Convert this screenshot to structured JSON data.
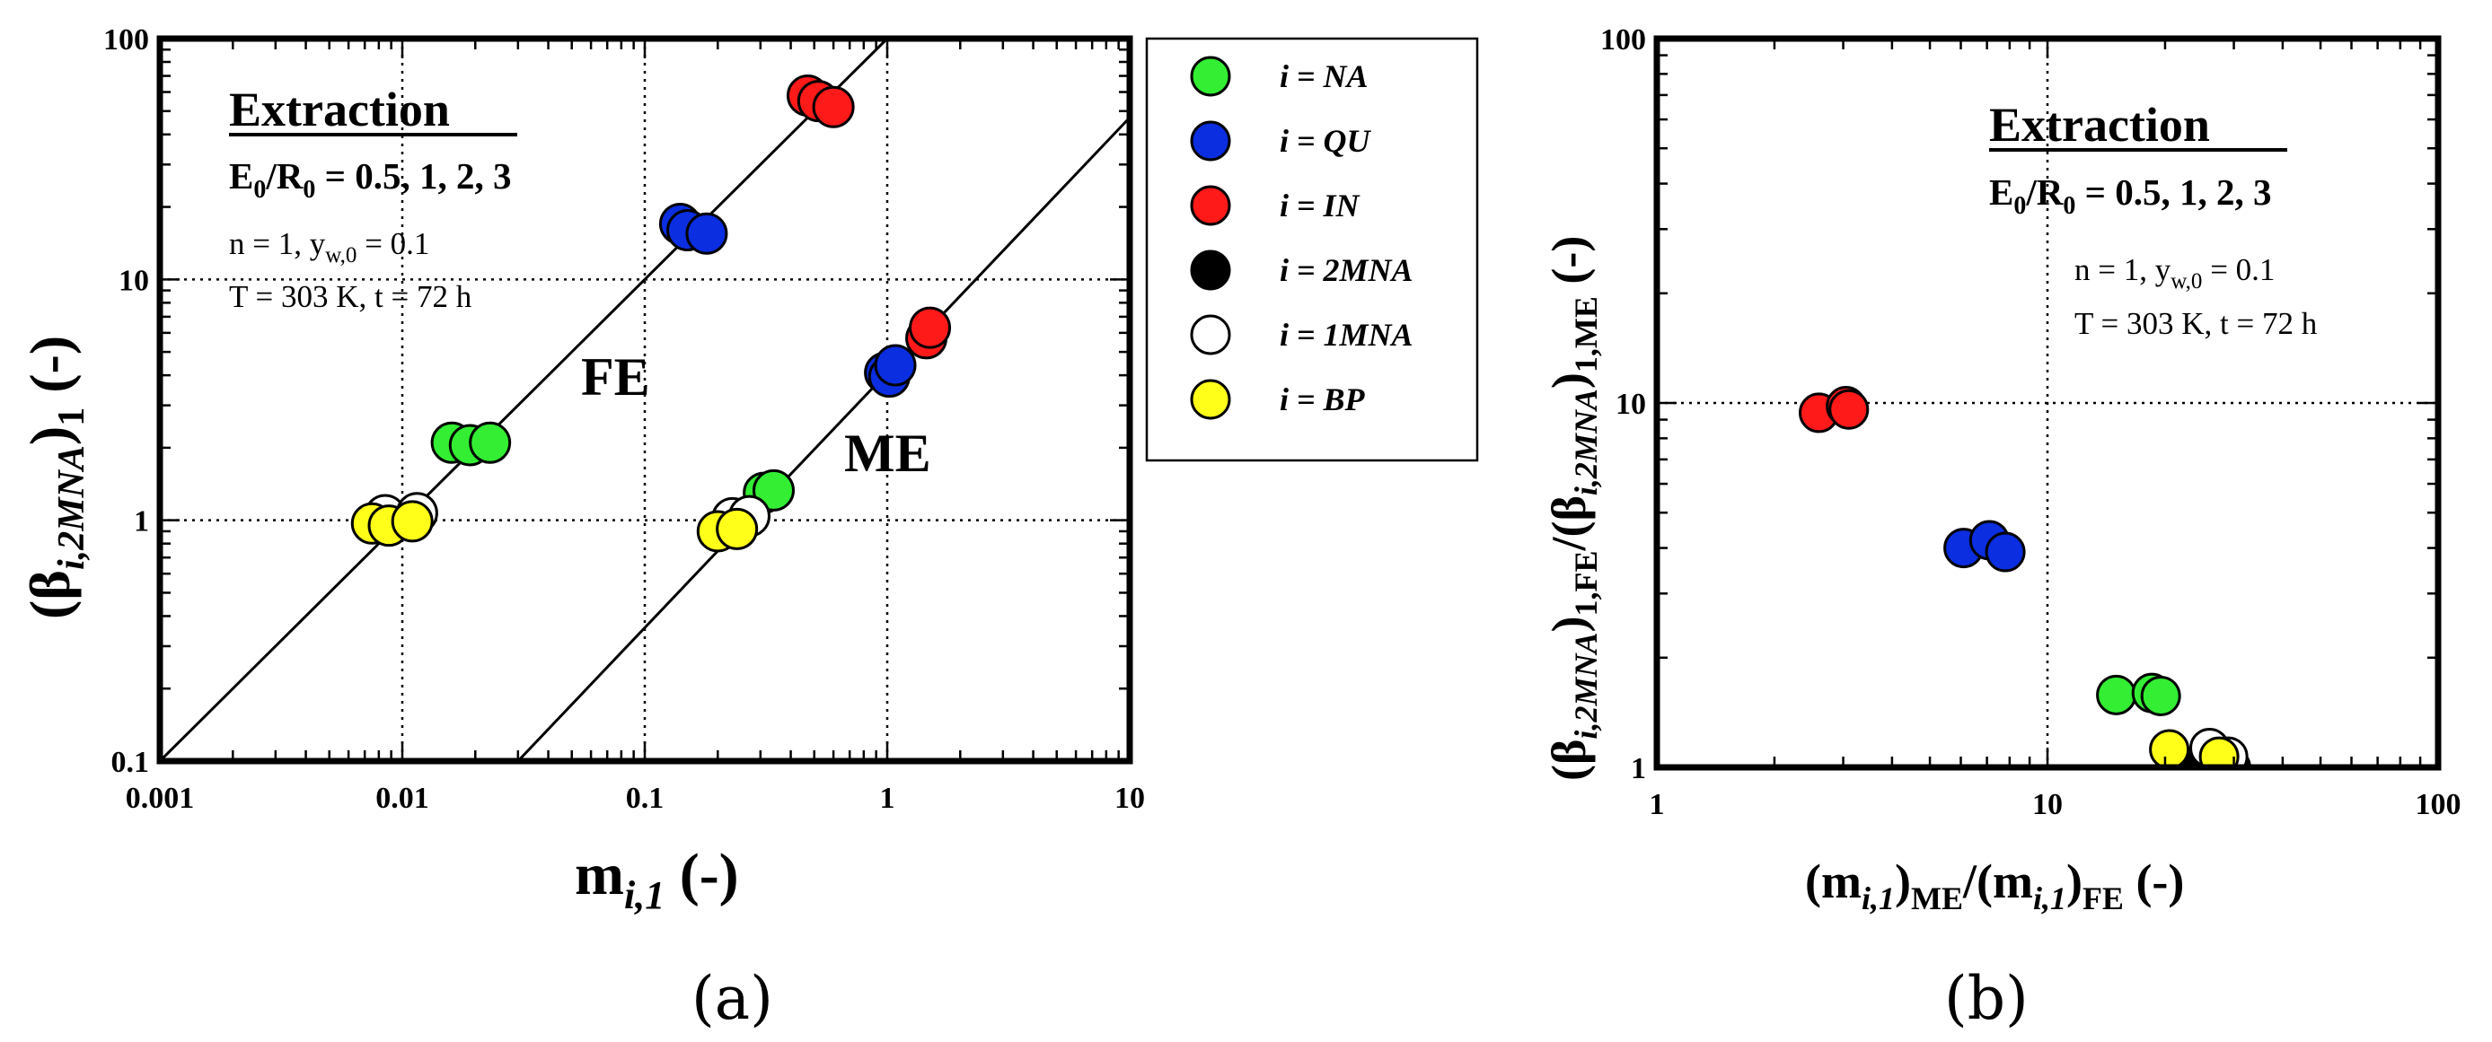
{
  "chart_data": [
    {
      "type": "scatter",
      "panel_label": "(a)",
      "x_scale": "log",
      "y_scale": "log",
      "xlim": [
        0.001,
        10
      ],
      "ylim": [
        0.1,
        100
      ],
      "xlabel_main": "m",
      "xlabel_sub": "i,1",
      "xlabel_tail": " (-)",
      "ylabel_open": "(β",
      "ylabel_sub": "i,2MNA",
      "ylabel_close": ")",
      "ylabel_sub2": "1",
      "ylabel_tail": " (-)",
      "x_ticks": [
        "0.001",
        "0.01",
        "0.1",
        "1",
        "10"
      ],
      "y_ticks": [
        "0.1",
        "1",
        "10",
        "100"
      ],
      "x_tick_values": [
        0.001,
        0.01,
        0.1,
        1,
        10
      ],
      "y_tick_values": [
        0.1,
        1,
        10,
        100
      ],
      "annotations": {
        "title": "Extraction",
        "ratio": {
          "a": "E",
          "a_sub": "0",
          "b": "/R",
          "b_sub": "0",
          "rest": " = 0.5, 1, 2, 3"
        },
        "line1": {
          "a": "n = 1, y",
          "a_sub": "w,0",
          "rest": " = 0.1"
        },
        "line2": "T = 303 K, t = 72 h",
        "fe": "FE",
        "me": "ME"
      },
      "fit_lines": [
        {
          "name": "FE",
          "x": [
            0.001,
            1.0
          ],
          "y": [
            0.1,
            100
          ]
        },
        {
          "name": "ME",
          "x": [
            0.03,
            10
          ],
          "y": [
            0.1,
            47
          ]
        }
      ],
      "series": [
        {
          "name": "i = NA",
          "color": "#33ee33",
          "points": [
            [
              0.016,
              2.1
            ],
            [
              0.019,
              2.05
            ],
            [
              0.023,
              2.1
            ],
            [
              0.31,
              1.3
            ],
            [
              0.34,
              1.33
            ]
          ]
        },
        {
          "name": "i = QU",
          "color": "#0a2ee0",
          "points": [
            [
              0.14,
              17
            ],
            [
              0.15,
              16
            ],
            [
              0.18,
              15.5
            ],
            [
              0.98,
              4.1
            ],
            [
              1.02,
              3.95
            ],
            [
              1.08,
              4.4
            ]
          ]
        },
        {
          "name": "i = IN",
          "color": "#ff1a1a",
          "points": [
            [
              0.47,
              58
            ],
            [
              0.52,
              55
            ],
            [
              0.6,
              52
            ],
            [
              1.45,
              5.7
            ],
            [
              1.5,
              6.3
            ]
          ]
        },
        {
          "name": "i = 2MNA",
          "color": "#000000",
          "points": []
        },
        {
          "name": "i = 1MNA",
          "color": "#ffffff",
          "points": [
            [
              0.0085,
              1.05
            ],
            [
              0.0115,
              1.07
            ],
            [
              0.23,
              1.02
            ],
            [
              0.27,
              1.04
            ]
          ]
        },
        {
          "name": "i = BP",
          "color": "#ffff1a",
          "points": [
            [
              0.0075,
              0.97
            ],
            [
              0.0088,
              0.95
            ],
            [
              0.011,
              0.99
            ],
            [
              0.2,
              0.9
            ],
            [
              0.24,
              0.92
            ]
          ]
        }
      ]
    },
    {
      "type": "scatter",
      "panel_label": "(b)",
      "x_scale": "log",
      "y_scale": "log",
      "xlim": [
        1,
        100
      ],
      "ylim": [
        1,
        100
      ],
      "xlabel": {
        "a": "(m",
        "a_sub": "i,1",
        "b": ")",
        "b_sub": "ME",
        "c": "/(m",
        "c_sub": "i,1",
        "d": ")",
        "d_sub": "FE",
        "tail": " (-)"
      },
      "ylabel": {
        "a": "(β",
        "a_sub": "i,2MNA",
        "b": ")",
        "b_sub": "1,FE",
        "c": "/(β",
        "c_sub": "i,2MNA",
        "d": ")",
        "d_sub": "1,ME",
        "tail": " (-)"
      },
      "x_ticks": [
        "1",
        "10",
        "100"
      ],
      "y_ticks": [
        "1",
        "10",
        "100"
      ],
      "x_tick_values": [
        1,
        10,
        100
      ],
      "y_tick_values": [
        1,
        10,
        100
      ],
      "annotations": {
        "title": "Extraction",
        "ratio": {
          "a": "E",
          "a_sub": "0",
          "b": "/R",
          "b_sub": "0",
          "rest": " = 0.5, 1, 2, 3"
        },
        "line1": {
          "a": "n = 1, y",
          "a_sub": "w,0",
          "rest": " = 0.1"
        },
        "line2": "T = 303 K, t = 72 h"
      },
      "series": [
        {
          "name": "i = NA",
          "color": "#33ee33",
          "points": [
            [
              15,
              1.58
            ],
            [
              18.5,
              1.6
            ],
            [
              19.5,
              1.57
            ]
          ]
        },
        {
          "name": "i = QU",
          "color": "#0a2ee0",
          "points": [
            [
              6.1,
              4.0
            ],
            [
              7.1,
              4.2
            ],
            [
              7.8,
              3.9
            ]
          ]
        },
        {
          "name": "i = IN",
          "color": "#ff1a1a",
          "points": [
            [
              2.6,
              9.4
            ],
            [
              3.05,
              9.8
            ],
            [
              3.1,
              9.6
            ]
          ]
        },
        {
          "name": "i = 2MNA",
          "color": "#000000",
          "points": [
            [
              22.5,
              1.0
            ],
            [
              29.5,
              1.0
            ]
          ]
        },
        {
          "name": "i = 1MNA",
          "color": "#ffffff",
          "points": [
            [
              26,
              1.13
            ],
            [
              29,
              1.07
            ]
          ]
        },
        {
          "name": "i = BP",
          "color": "#ffff1a",
          "points": [
            [
              20.5,
              1.12
            ],
            [
              27.5,
              1.07
            ]
          ]
        }
      ]
    }
  ],
  "legend": [
    {
      "prefix": "i",
      "text": " = NA",
      "color": "#33ee33"
    },
    {
      "prefix": "i",
      "text": " = QU",
      "color": "#0a2ee0"
    },
    {
      "prefix": "i",
      "text": " = IN",
      "color": "#ff1a1a"
    },
    {
      "prefix": "i",
      "text": " = 2MNA",
      "color": "#000000"
    },
    {
      "prefix": "i",
      "text": " = 1MNA",
      "color": "#ffffff"
    },
    {
      "prefix": "i",
      "text": " = BP",
      "color": "#ffff1a"
    }
  ]
}
